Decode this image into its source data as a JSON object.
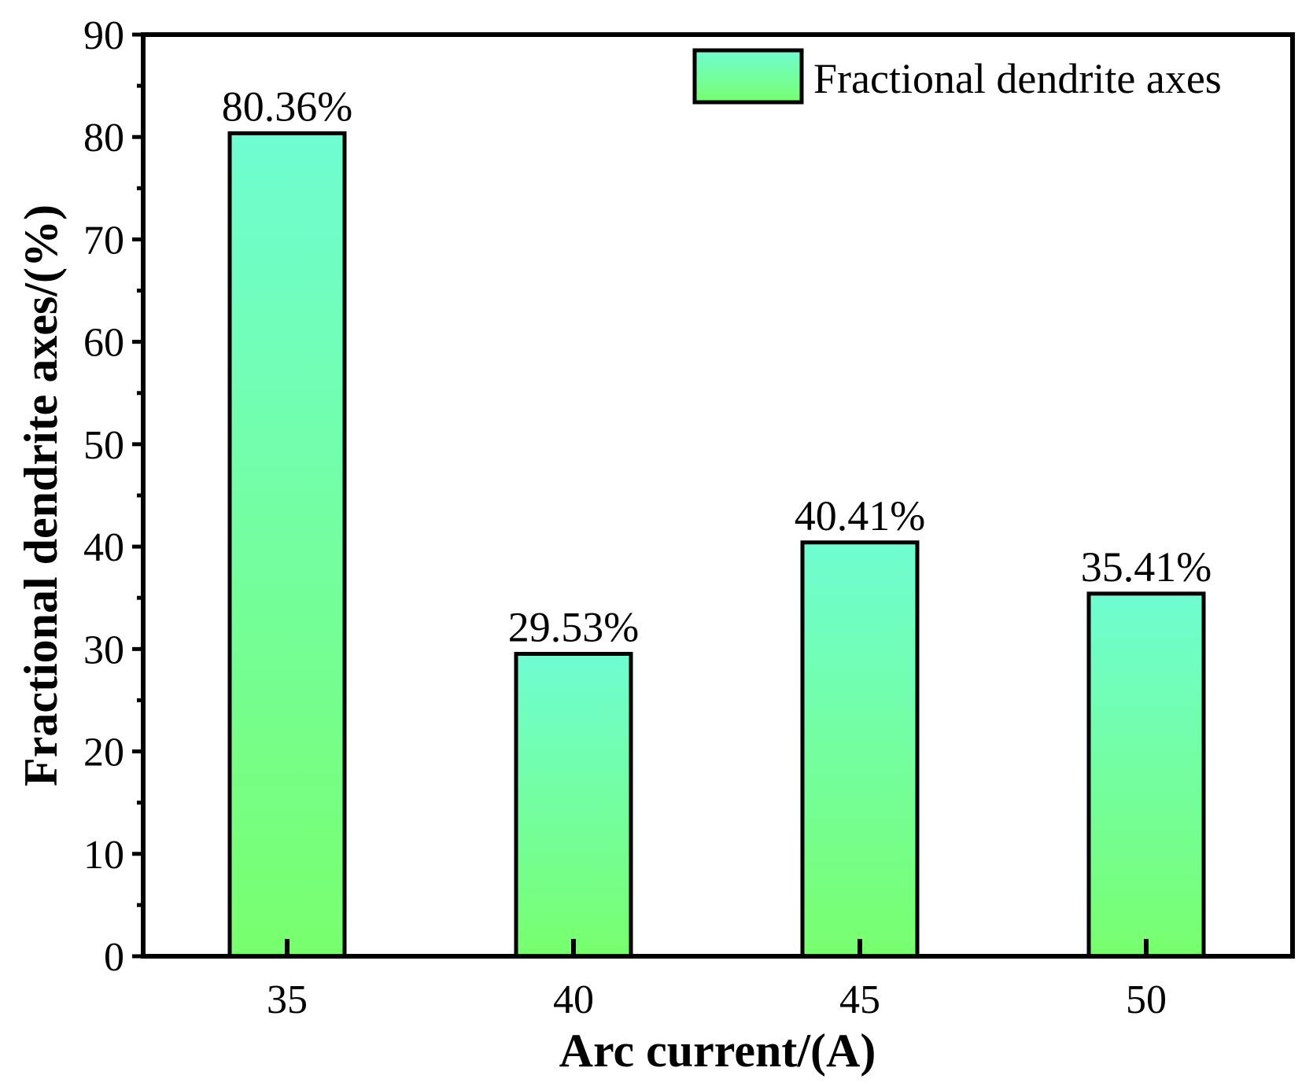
{
  "chart_data": {
    "type": "bar",
    "xlabel": "Arc current/(A)",
    "ylabel": "Fractional dendrite axes/(%)",
    "categories": [
      "35",
      "40",
      "45",
      "50"
    ],
    "series": [
      {
        "name": "Fractional dendrite axes",
        "values": [
          80.36,
          29.53,
          40.41,
          35.41
        ],
        "labels": [
          "80.36%",
          "29.53%",
          "40.41%",
          "35.41%"
        ]
      }
    ],
    "ylim": [
      0,
      90
    ],
    "yticks": [
      "0",
      "10",
      "20",
      "30",
      "40",
      "50",
      "60",
      "70",
      "80",
      "90"
    ],
    "grid": false,
    "legend": "top-right",
    "colors": {
      "bar_top": "#6ffdd2",
      "bar_bottom": "#78ff6e",
      "edge": "#000000"
    }
  }
}
